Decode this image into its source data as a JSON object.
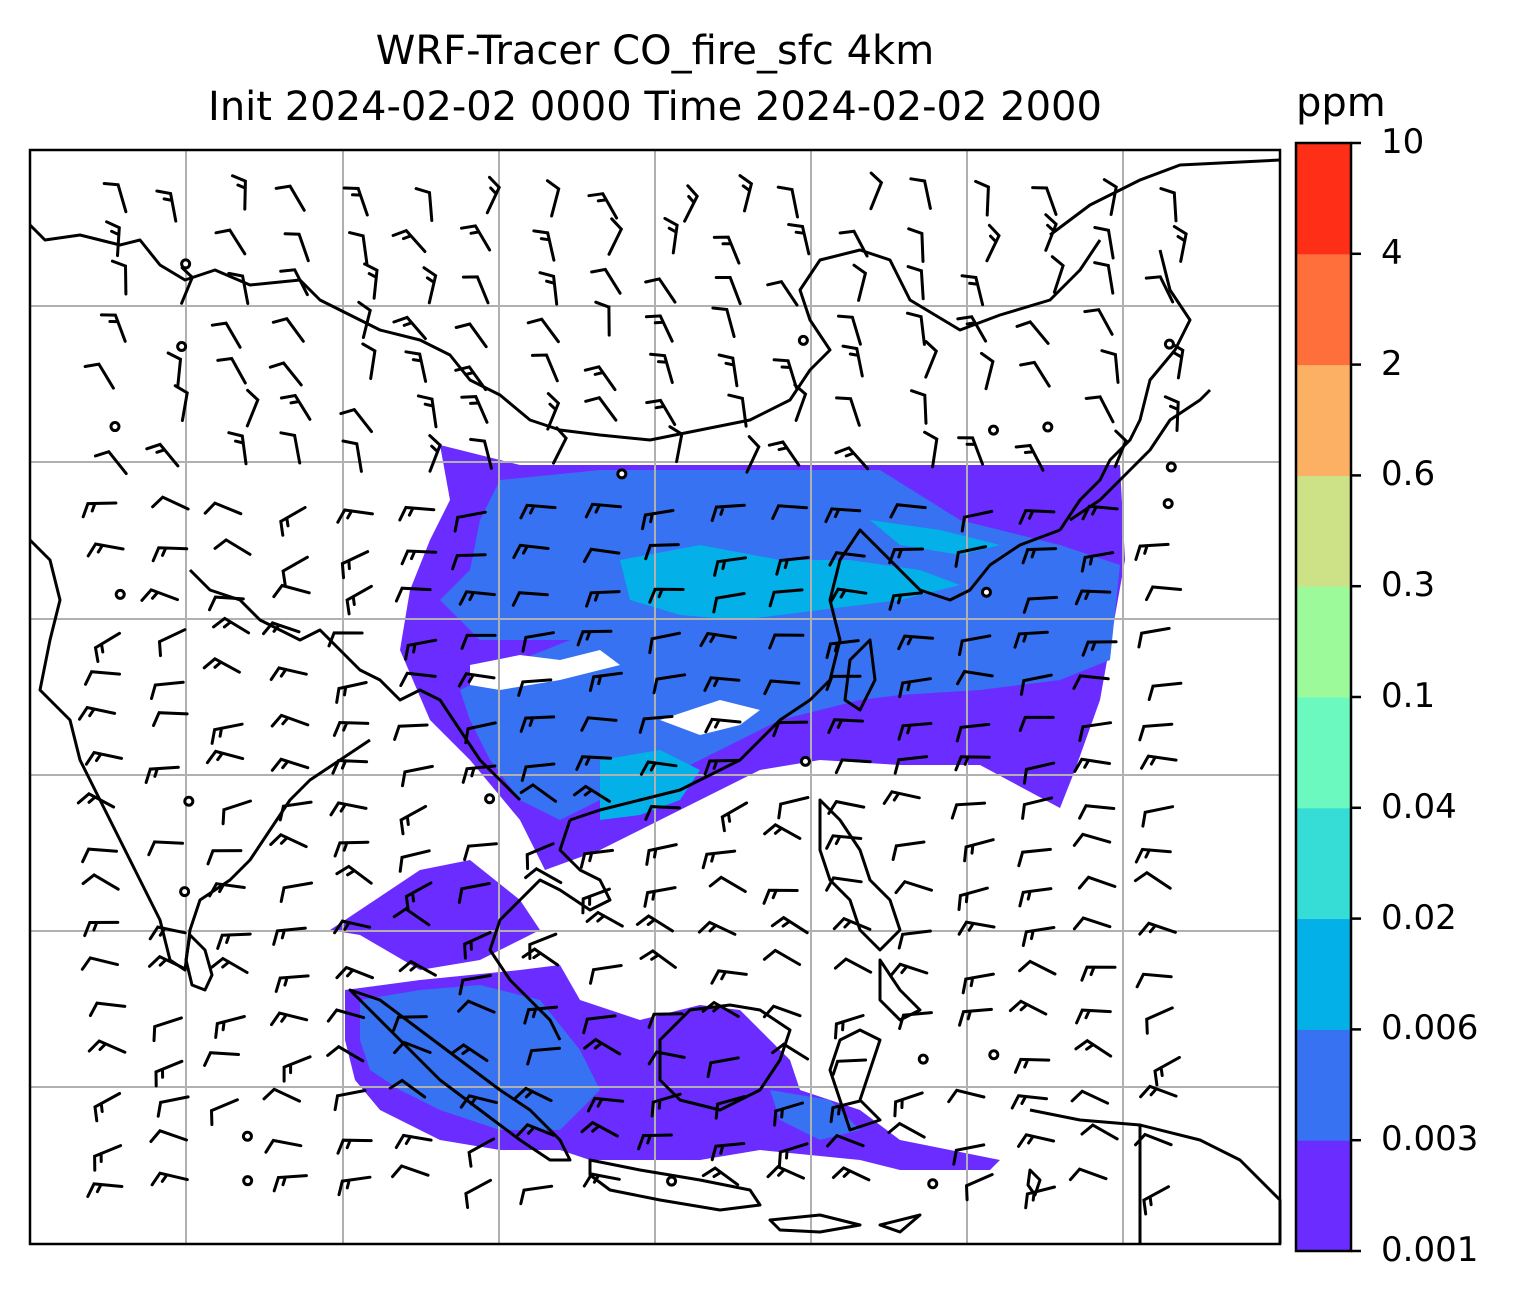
{
  "title_line1": "WRF-Tracer CO_fire_sfc 4km",
  "title_line2": "Init 2024-02-02 0000 Time 2024-02-02 2000",
  "colorbar": {
    "unit": "ppm",
    "levels": [
      "0.001",
      "0.003",
      "0.006",
      "0.02",
      "0.04",
      "0.1",
      "0.3",
      "0.6",
      "2",
      "4",
      "10"
    ],
    "colors": [
      "#6a2cff",
      "#3672f2",
      "#03b0e8",
      "#35ddd6",
      "#6cf9bf",
      "#9cfa9b",
      "#cde287",
      "#fbb063",
      "#ff6f3c",
      "#ff2e17"
    ]
  },
  "map": {
    "field": "CO_fire_sfc",
    "grid": "on",
    "barb_color": "#000000",
    "coast_color": "#000000"
  }
}
